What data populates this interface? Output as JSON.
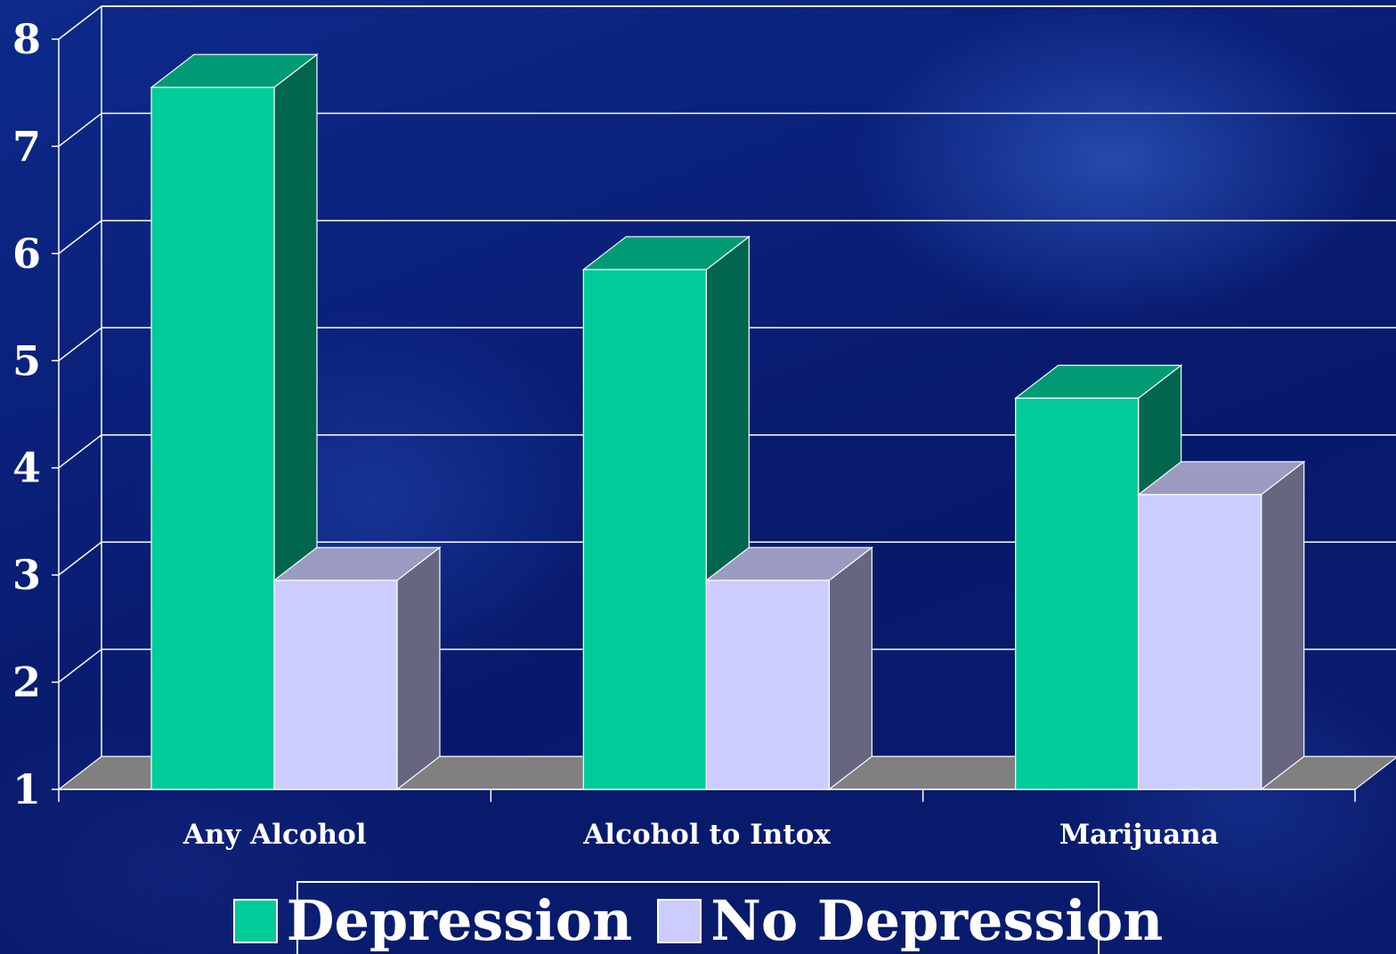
{
  "chart_data": {
    "type": "bar",
    "categories": [
      "Any Alcohol",
      "Alcohol to Intox",
      "Marijuana"
    ],
    "series": [
      {
        "name": "Depression",
        "values": [
          7.55,
          5.85,
          4.65
        ],
        "color": "#00cc99"
      },
      {
        "name": "No Depression",
        "values": [
          2.95,
          2.95,
          3.75
        ],
        "color": "#ccccff"
      }
    ],
    "yticks": [
      "1",
      "2",
      "3",
      "4",
      "5",
      "6",
      "7",
      "8"
    ],
    "ylim": [
      1,
      8
    ],
    "grid": true,
    "style": "3d",
    "legend_position": "bottom"
  }
}
